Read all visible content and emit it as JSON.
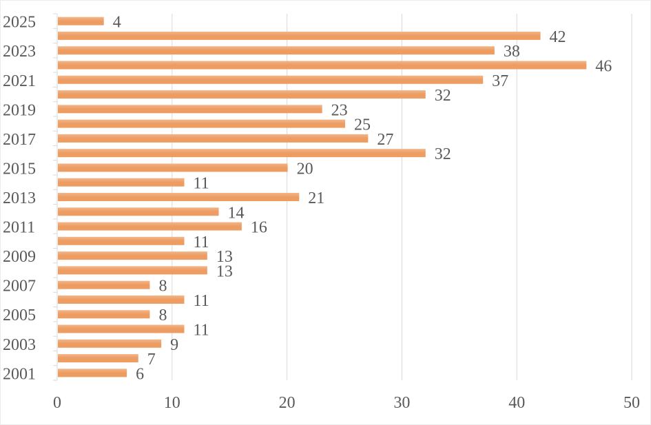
{
  "chart_data": {
    "type": "bar",
    "orientation": "horizontal",
    "title": "",
    "xlabel": "",
    "ylabel": "",
    "categories": [
      "2001",
      "2002",
      "2003",
      "2004",
      "2005",
      "2006",
      "2007",
      "2008",
      "2009",
      "2010",
      "2011",
      "2012",
      "2013",
      "2014",
      "2015",
      "2016",
      "2017",
      "2018",
      "2019",
      "2020",
      "2021",
      "2022",
      "2023",
      "2024",
      "2025"
    ],
    "category_tick_labels": [
      "2001",
      "2003",
      "2005",
      "2007",
      "2009",
      "2011",
      "2013",
      "2015",
      "2017",
      "2019",
      "2021",
      "2023",
      "2025"
    ],
    "values": [
      6,
      7,
      9,
      11,
      8,
      11,
      8,
      13,
      13,
      11,
      16,
      14,
      21,
      11,
      20,
      32,
      27,
      25,
      23,
      32,
      37,
      46,
      38,
      42,
      4
    ],
    "xlim": [
      0,
      50
    ],
    "x_ticks": [
      "0",
      "10",
      "20",
      "30",
      "40",
      "50"
    ],
    "grid": "vertical",
    "data_labels": true,
    "legend": "none",
    "colors": {
      "bar": "#ED9C62",
      "bar_light": "#F2B68A",
      "text": "#595959",
      "grid": "#D9D9D9"
    }
  }
}
